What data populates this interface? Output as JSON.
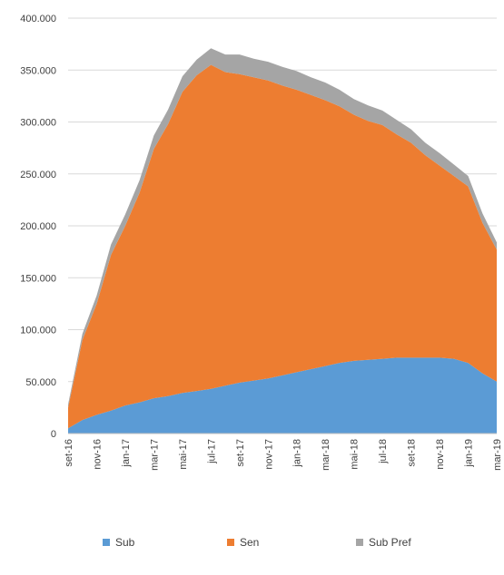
{
  "chart_data": {
    "type": "area",
    "stacked": true,
    "x": [
      "set-16",
      "out-16",
      "nov-16",
      "dez-16",
      "jan-17",
      "fev-17",
      "mar-17",
      "abr-17",
      "mai-17",
      "jun-17",
      "jul-17",
      "ago-17",
      "set-17",
      "out-17",
      "nov-17",
      "dez-17",
      "jan-18",
      "fev-18",
      "mar-18",
      "abr-18",
      "mai-18",
      "jun-18",
      "jul-18",
      "ago-18",
      "set-18",
      "out-18",
      "nov-18",
      "dez-18",
      "jan-19",
      "fev-19",
      "mar-19"
    ],
    "x_tick_labels": [
      "set-16",
      "nov-16",
      "jan-17",
      "mar-17",
      "mai-17",
      "jul-17",
      "set-17",
      "nov-17",
      "jan-18",
      "mar-18",
      "mai-18",
      "jul-18",
      "set-18",
      "nov-18",
      "jan-19",
      "mar-19"
    ],
    "y_ticks": [
      "0",
      "50.000",
      "100.000",
      "150.000",
      "200.000",
      "250.000",
      "300.000",
      "350.000",
      "400.000"
    ],
    "ylim": [
      0,
      400000
    ],
    "grid": true,
    "legend_position": "bottom",
    "series": [
      {
        "name": "Sub",
        "color": "#5b9bd5",
        "values": [
          5000,
          13000,
          18000,
          22000,
          27000,
          30000,
          34000,
          36000,
          39000,
          41000,
          43000,
          46000,
          49000,
          51000,
          53000,
          56000,
          59000,
          62000,
          65000,
          68000,
          70000,
          71000,
          72000,
          73000,
          73000,
          73000,
          73000,
          72000,
          68000,
          58000,
          50000
        ]
      },
      {
        "name": "Sen",
        "color": "#ed7d31",
        "values": [
          20000,
          77000,
          107000,
          150000,
          173000,
          202000,
          240000,
          262000,
          290000,
          304000,
          312000,
          302000,
          297000,
          292000,
          287000,
          279000,
          272000,
          264000,
          256000,
          247000,
          237000,
          230000,
          225000,
          215000,
          207000,
          195000,
          185000,
          176000,
          170000,
          145000,
          127000
        ]
      },
      {
        "name": "Sub Pref",
        "color": "#a5a5a5",
        "values": [
          3000,
          6000,
          8000,
          10000,
          11000,
          12000,
          13000,
          14000,
          15000,
          15000,
          16000,
          17000,
          19000,
          18000,
          18000,
          18000,
          18000,
          17000,
          17000,
          16000,
          15000,
          15000,
          14000,
          14000,
          13000,
          12000,
          12000,
          11000,
          10000,
          9000,
          7000
        ]
      }
    ]
  }
}
